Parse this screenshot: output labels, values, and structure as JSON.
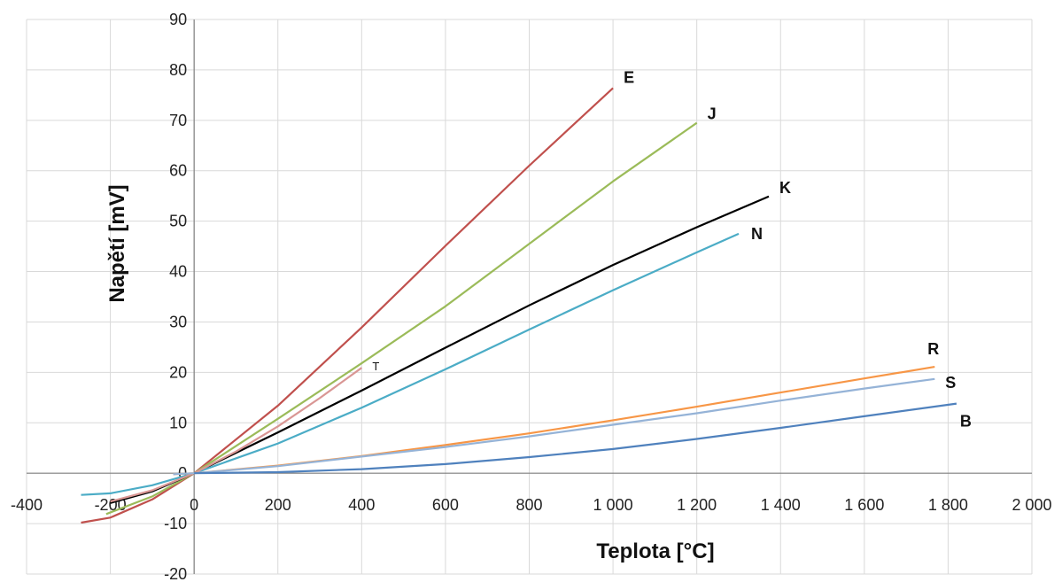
{
  "chart_data": {
    "type": "line",
    "xlabel": "Teplota [°C]",
    "ylabel": "Napětí [mV]",
    "xlim": [
      -400,
      2000
    ],
    "ylim": [
      -20,
      90
    ],
    "x_ticks": [
      "-400",
      "-200",
      "0",
      "200",
      "400",
      "600",
      "800",
      "1 000",
      "1 200",
      "1 400",
      "1 600",
      "1 800",
      "2 000"
    ],
    "y_ticks": [
      "-20",
      "-10",
      "0",
      "10",
      "20",
      "30",
      "40",
      "50",
      "60",
      "70",
      "80",
      "90"
    ],
    "grid": true,
    "series": [
      {
        "name": "E",
        "color": "#c0504d",
        "points": [
          [
            -270,
            -9.8
          ],
          [
            -200,
            -8.8
          ],
          [
            -100,
            -5.2
          ],
          [
            0,
            0
          ],
          [
            200,
            13.4
          ],
          [
            400,
            28.9
          ],
          [
            600,
            45.1
          ],
          [
            800,
            61.0
          ],
          [
            1000,
            76.4
          ]
        ]
      },
      {
        "name": "J",
        "color": "#9bbb59",
        "points": [
          [
            -210,
            -8.1
          ],
          [
            -100,
            -4.6
          ],
          [
            0,
            0
          ],
          [
            200,
            10.8
          ],
          [
            400,
            21.8
          ],
          [
            600,
            33.1
          ],
          [
            800,
            45.5
          ],
          [
            1000,
            57.9
          ],
          [
            1200,
            69.5
          ]
        ]
      },
      {
        "name": "K",
        "color": "#000000",
        "points": [
          [
            -200,
            -5.9
          ],
          [
            -100,
            -3.6
          ],
          [
            0,
            0
          ],
          [
            200,
            8.1
          ],
          [
            400,
            16.4
          ],
          [
            600,
            24.9
          ],
          [
            800,
            33.3
          ],
          [
            1000,
            41.3
          ],
          [
            1200,
            48.8
          ],
          [
            1372,
            54.9
          ]
        ]
      },
      {
        "name": "N",
        "color": "#4bacc6",
        "points": [
          [
            -270,
            -4.3
          ],
          [
            -200,
            -4.0
          ],
          [
            -100,
            -2.4
          ],
          [
            0,
            0
          ],
          [
            200,
            5.9
          ],
          [
            400,
            13.0
          ],
          [
            600,
            20.6
          ],
          [
            800,
            28.5
          ],
          [
            1000,
            36.3
          ],
          [
            1200,
            43.8
          ],
          [
            1300,
            47.5
          ]
        ]
      },
      {
        "name": "T",
        "color": "#d99694",
        "points": [
          [
            -200,
            -5.6
          ],
          [
            -100,
            -3.4
          ],
          [
            0,
            0
          ],
          [
            100,
            4.3
          ],
          [
            200,
            9.3
          ],
          [
            300,
            14.9
          ],
          [
            400,
            20.9
          ]
        ]
      },
      {
        "name": "R",
        "color": "#f79646",
        "points": [
          [
            -50,
            -0.2
          ],
          [
            0,
            0
          ],
          [
            200,
            1.5
          ],
          [
            400,
            3.4
          ],
          [
            600,
            5.6
          ],
          [
            800,
            7.9
          ],
          [
            1000,
            10.5
          ],
          [
            1200,
            13.2
          ],
          [
            1400,
            16.0
          ],
          [
            1600,
            18.8
          ],
          [
            1768,
            21.1
          ]
        ]
      },
      {
        "name": "S",
        "color": "#95b3d7",
        "points": [
          [
            -50,
            -0.2
          ],
          [
            0,
            0
          ],
          [
            200,
            1.4
          ],
          [
            400,
            3.3
          ],
          [
            600,
            5.2
          ],
          [
            800,
            7.3
          ],
          [
            1000,
            9.6
          ],
          [
            1200,
            11.9
          ],
          [
            1400,
            14.4
          ],
          [
            1600,
            16.8
          ],
          [
            1768,
            18.7
          ]
        ]
      },
      {
        "name": "B",
        "color": "#4f81bd",
        "points": [
          [
            0,
            0
          ],
          [
            200,
            0.2
          ],
          [
            400,
            0.8
          ],
          [
            600,
            1.8
          ],
          [
            800,
            3.2
          ],
          [
            1000,
            4.8
          ],
          [
            1200,
            6.8
          ],
          [
            1400,
            9.0
          ],
          [
            1600,
            11.3
          ],
          [
            1820,
            13.8
          ]
        ]
      }
    ]
  }
}
